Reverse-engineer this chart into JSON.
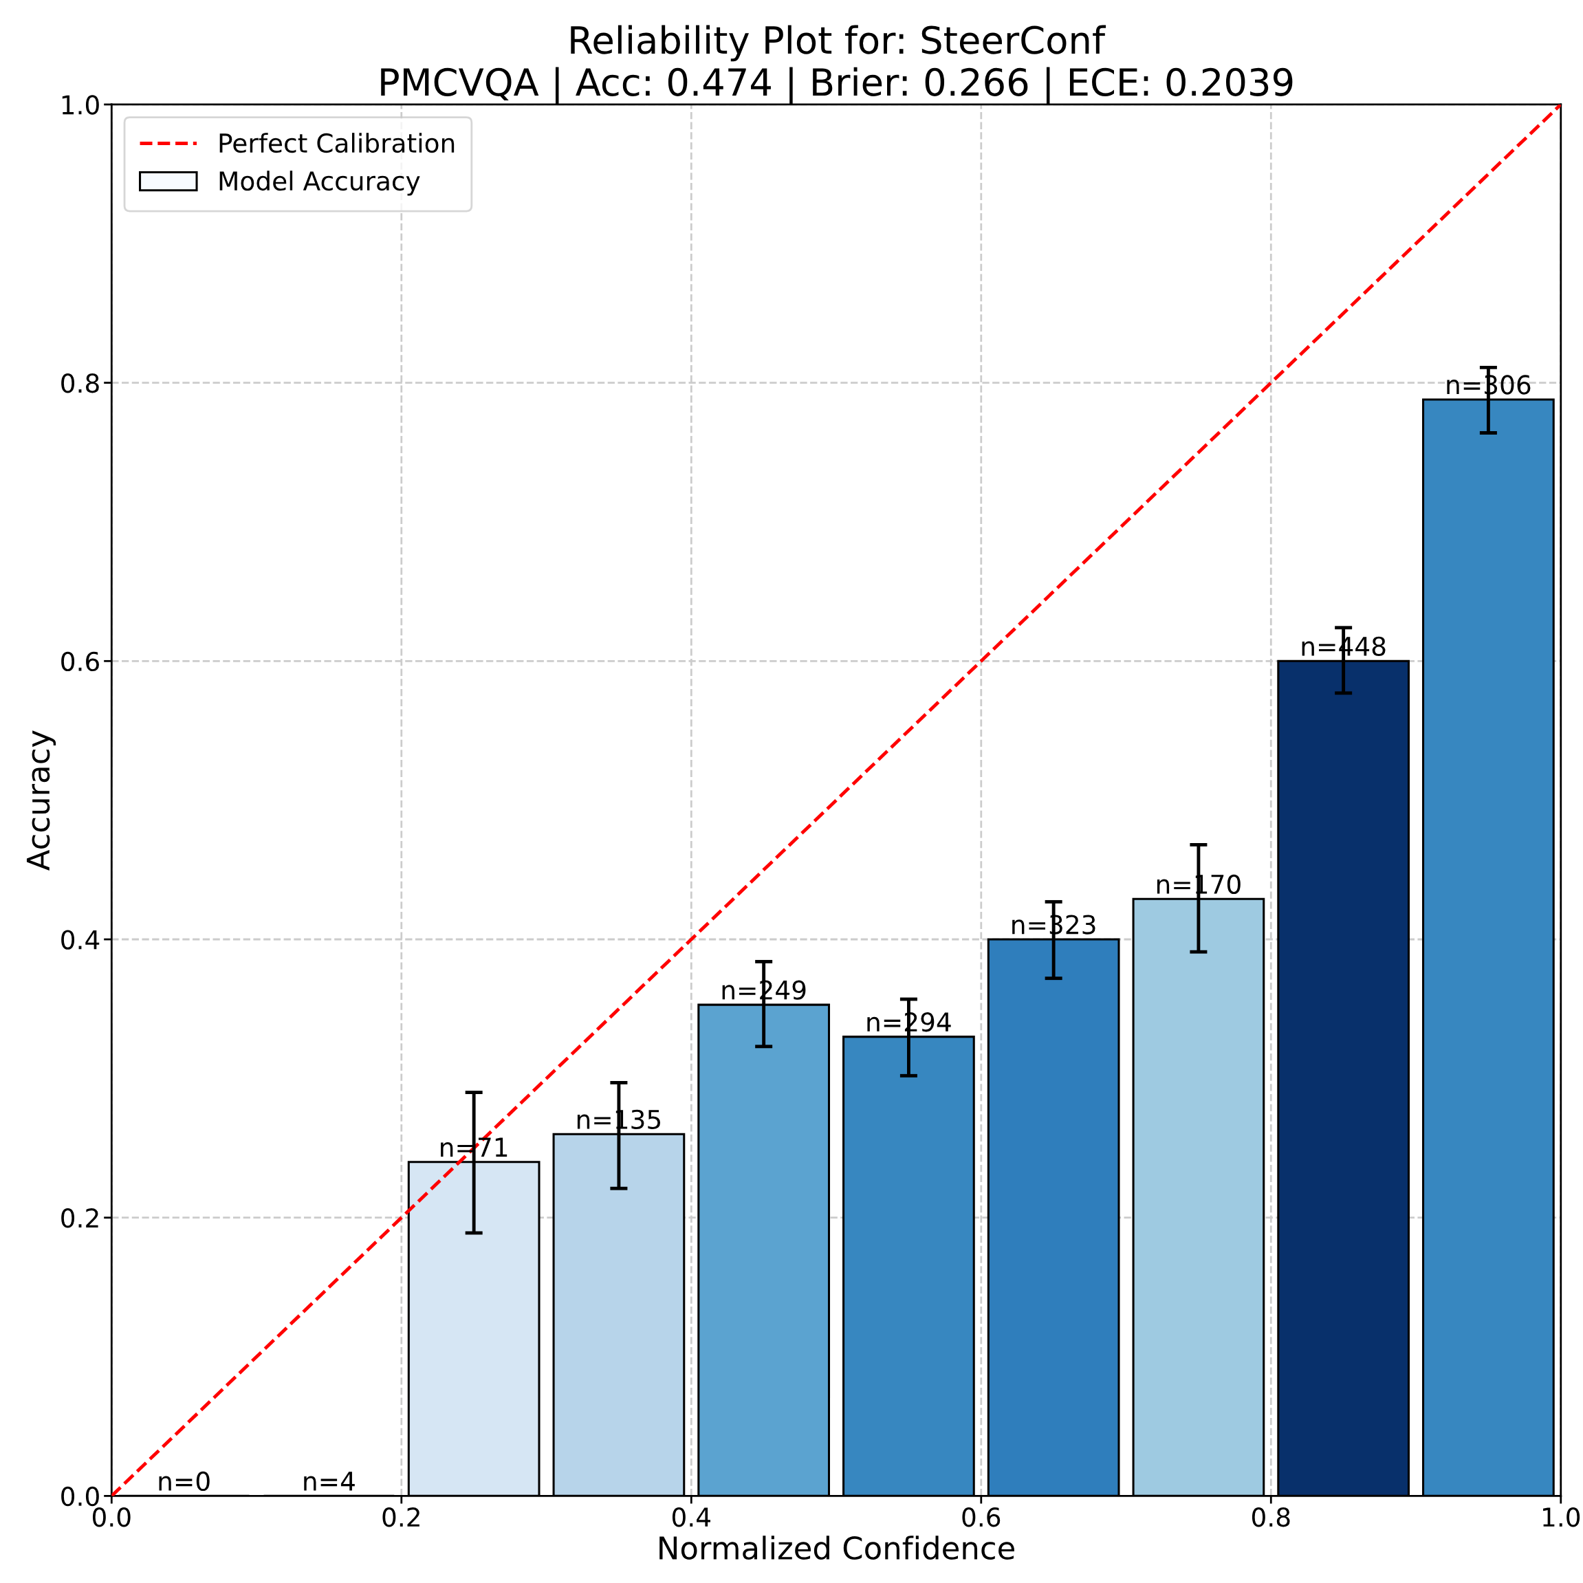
{
  "chart_data": {
    "type": "bar",
    "title": "Reliability Plot for: SteerConf",
    "subtitle": "PMCVQA | Acc: 0.474 | Brier: 0.266 | ECE: 0.2039",
    "xlabel": "Normalized Confidence",
    "ylabel": "Accuracy",
    "x": [
      0.05,
      0.15,
      0.25,
      0.35,
      0.45,
      0.55,
      0.65,
      0.75,
      0.85,
      0.95
    ],
    "series": [
      {
        "name": "Model Accuracy",
        "colors": [
          "#f7fbff",
          "#f7fbff",
          "#d6e6f4",
          "#b7d4ea",
          "#5ba3d0",
          "#3787c0",
          "#2f7ebc",
          "#9ecae1",
          "#08306b",
          "#3787c0"
        ],
        "values": [
          0,
          0,
          0.24,
          0.26,
          0.353,
          0.33,
          0.4,
          0.429,
          0.6,
          0.788
        ],
        "errors": [
          null,
          null,
          [
            0.189,
            0.29
          ],
          [
            0.221,
            0.297
          ],
          [
            0.323,
            0.384
          ],
          [
            0.302,
            0.357
          ],
          [
            0.372,
            0.427
          ],
          [
            0.391,
            0.468
          ],
          [
            0.577,
            0.624
          ],
          [
            0.764,
            0.811
          ]
        ]
      },
      {
        "name": "Perfect Calibration",
        "type": "line",
        "color": "#ff0000",
        "line_style": "dashed",
        "x": [
          0,
          1
        ],
        "values": [
          0,
          1
        ]
      }
    ],
    "annotations": [
      {
        "text": "n=0",
        "x": 0.05,
        "y": 0
      },
      {
        "text": "n=4",
        "x": 0.15,
        "y": 0
      },
      {
        "text": "n=71",
        "x": 0.25,
        "y": 0.24
      },
      {
        "text": "n=135",
        "x": 0.35,
        "y": 0.26
      },
      {
        "text": "n=249",
        "x": 0.45,
        "y": 0.353
      },
      {
        "text": "n=294",
        "x": 0.55,
        "y": 0.33
      },
      {
        "text": "n=323",
        "x": 0.65,
        "y": 0.4
      },
      {
        "text": "n=170",
        "x": 0.75,
        "y": 0.429
      },
      {
        "text": "n=448",
        "x": 0.85,
        "y": 0.6
      },
      {
        "text": "n=306",
        "x": 0.95,
        "y": 0.788
      }
    ],
    "xlim": [
      0,
      1
    ],
    "ylim": [
      0,
      1
    ],
    "xticks": [
      {
        "value": 0,
        "label": "0.0"
      },
      0.2,
      0.4,
      0.6,
      0.8,
      {
        "value": 1,
        "label": "1.0"
      }
    ],
    "yticks": [
      {
        "value": 0,
        "label": "0.0"
      },
      0.2,
      0.4,
      0.6,
      0.8,
      {
        "value": 1,
        "label": "1.0"
      }
    ],
    "grid": true,
    "legend": "top left"
  }
}
